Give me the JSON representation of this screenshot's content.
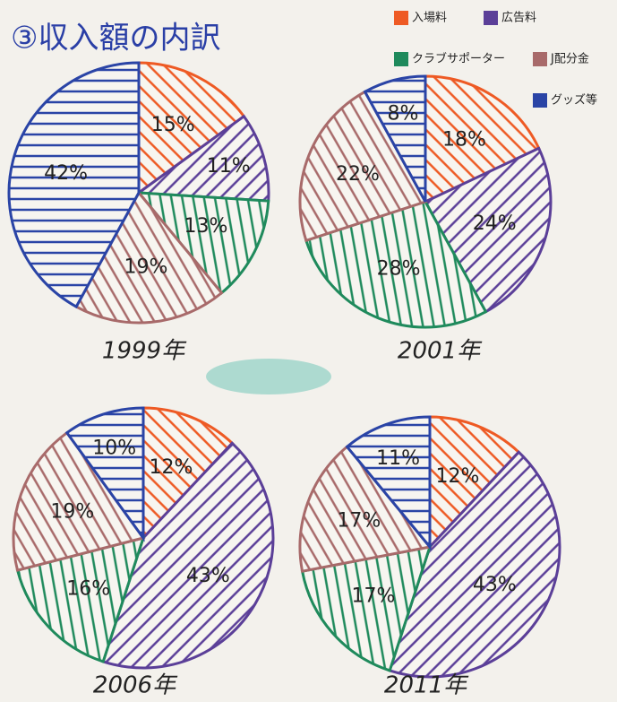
{
  "header": {
    "title": "③収入額の内訳"
  },
  "legend": [
    {
      "name": "入場料",
      "color": "#ee5a24"
    },
    {
      "name": "広告料",
      "color": "#5b3f98"
    },
    {
      "name": "クラブサポーター",
      "color": "#1f8a5c"
    },
    {
      "name": "J配分金",
      "color": "#a86a6a"
    },
    {
      "name": "グッズ等",
      "color": "#2a44a6"
    }
  ],
  "chart_data": [
    {
      "type": "pie",
      "title": "1999年",
      "values": [
        15,
        11,
        13,
        19,
        42
      ],
      "value_labels": [
        "15%",
        "11%",
        "13%",
        "19%",
        "42%"
      ]
    },
    {
      "type": "pie",
      "title": "2001年",
      "values": [
        18,
        24,
        28,
        22,
        8
      ],
      "value_labels": [
        "18%",
        "24%",
        "28%",
        "22%",
        "8%"
      ]
    },
    {
      "type": "pie",
      "title": "2006年",
      "values": [
        12,
        43,
        16,
        19,
        10
      ],
      "value_labels": [
        "12%",
        "43%",
        "16%",
        "19%",
        "10%"
      ]
    },
    {
      "type": "pie",
      "title": "2011年",
      "values": [
        12,
        43,
        17,
        17,
        11
      ],
      "value_labels": [
        "12%",
        "43%",
        "17%",
        "17%",
        "11%"
      ]
    }
  ]
}
